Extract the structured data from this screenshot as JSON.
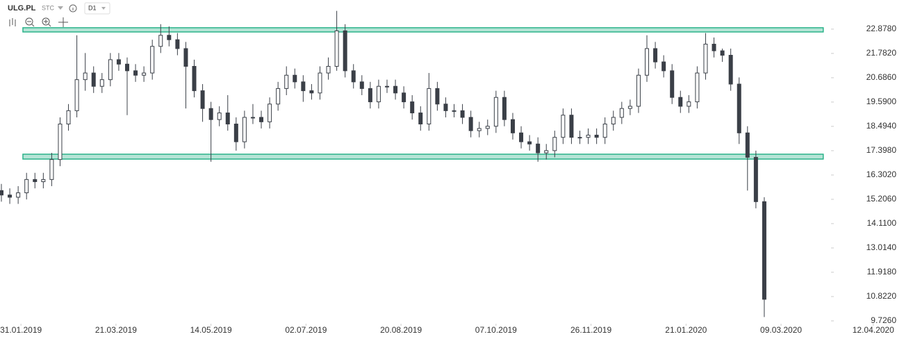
{
  "chart_data": {
    "type": "candlestick",
    "toolbar": {
      "symbol": "ULG.PL",
      "market": "STC",
      "interval": "D1"
    },
    "up_color": "#ffffff",
    "down_color": "#3a3f47",
    "outline_color": "#3a3f47",
    "zone_color": "#2bb38a",
    "xlim": [
      -7.5,
      316
    ],
    "ylim": [
      9.63,
      24.19
    ],
    "xticks": [
      {
        "value": 0,
        "label": "31.01.2019"
      },
      {
        "value": 34,
        "label": "21.03.2019"
      },
      {
        "value": 68,
        "label": "14.05.2019"
      },
      {
        "value": 102,
        "label": "02.07.2019"
      },
      {
        "value": 136,
        "label": "20.08.2019"
      },
      {
        "value": 170,
        "label": "07.10.2019"
      },
      {
        "value": 204,
        "label": "26.11.2019"
      },
      {
        "value": 238,
        "label": "21.01.2020"
      },
      {
        "value": 272,
        "label": "09.03.2020"
      },
      {
        "value": 305,
        "label": "12.04.2020"
      }
    ],
    "yticks": [
      {
        "value": 9.726,
        "label": "9.7260"
      },
      {
        "value": 10.822,
        "label": "10.8220"
      },
      {
        "value": 11.918,
        "label": "11.9180"
      },
      {
        "value": 13.014,
        "label": "13.0140"
      },
      {
        "value": 14.11,
        "label": "14.1100"
      },
      {
        "value": 15.206,
        "label": "15.2060"
      },
      {
        "value": 16.302,
        "label": "16.3020"
      },
      {
        "value": 17.398,
        "label": "17.3980"
      },
      {
        "value": 18.494,
        "label": "18.4940"
      },
      {
        "value": 19.59,
        "label": "19.5900"
      },
      {
        "value": 20.686,
        "label": "20.6860"
      },
      {
        "value": 21.782,
        "label": "21.7820"
      },
      {
        "value": 22.878,
        "label": "22.8780"
      }
    ],
    "zones": [
      {
        "x": [
          0.7,
          287.1
        ],
        "y": [
          22.75,
          22.94
        ]
      },
      {
        "x": [
          0.7,
          287.1
        ],
        "y": [
          17.02,
          17.24
        ]
      }
    ],
    "x": [
      -7,
      -4,
      -1,
      2,
      5,
      8,
      11,
      14,
      17,
      20,
      23,
      26,
      29,
      32,
      35,
      38,
      41,
      44,
      47,
      50,
      53,
      56,
      59,
      62,
      65,
      68,
      71,
      74,
      77,
      80,
      83,
      86,
      89,
      92,
      95,
      98,
      101,
      104,
      107,
      110,
      113,
      116,
      119,
      122,
      125,
      128,
      131,
      134,
      137,
      140,
      143,
      146,
      149,
      152,
      155,
      158,
      161,
      164,
      167,
      170,
      173,
      176,
      179,
      182,
      185,
      188,
      191,
      194,
      197,
      200,
      203,
      206,
      209,
      212,
      215,
      218,
      221,
      224,
      227,
      230,
      233,
      236,
      239,
      242,
      245,
      248,
      251,
      254,
      257,
      260,
      263,
      266
    ],
    "open": [
      15.6,
      15.4,
      15.3,
      15.5,
      16.1,
      16.0,
      16.1,
      17.0,
      18.6,
      19.2,
      20.6,
      20.9,
      20.3,
      20.6,
      21.5,
      21.3,
      21.0,
      20.8,
      20.9,
      22.1,
      22.6,
      22.4,
      22.0,
      21.2,
      20.1,
      19.3,
      18.8,
      19.1,
      18.6,
      17.8,
      18.9,
      18.9,
      18.7,
      19.5,
      20.2,
      20.8,
      20.5,
      20.1,
      20.0,
      20.9,
      21.2,
      22.8,
      21.0,
      20.5,
      20.2,
      19.6,
      20.3,
      20.3,
      20.0,
      19.6,
      19.1,
      18.6,
      20.2,
      19.5,
      19.2,
      19.2,
      18.9,
      18.3,
      18.4,
      18.5,
      19.8,
      18.8,
      18.2,
      17.8,
      17.7,
      17.3,
      17.4,
      18.0,
      19.0,
      18.0,
      18.0,
      18.1,
      18.0,
      18.6,
      18.9,
      19.3,
      19.4,
      20.8,
      22.0,
      21.4,
      21.0,
      19.8,
      19.4,
      19.6,
      20.9,
      22.2,
      21.9,
      21.7,
      20.4,
      18.2,
      17.1,
      15.1
    ],
    "high": [
      15.9,
      15.7,
      15.8,
      16.4,
      16.4,
      16.4,
      17.3,
      18.9,
      19.5,
      22.6,
      21.8,
      21.2,
      20.9,
      21.8,
      21.8,
      21.6,
      21.3,
      21.2,
      22.4,
      23.1,
      23.0,
      22.7,
      22.3,
      21.5,
      20.4,
      19.6,
      19.4,
      19.9,
      18.9,
      19.2,
      19.5,
      19.2,
      19.8,
      20.5,
      21.2,
      21.1,
      20.8,
      20.4,
      21.2,
      21.6,
      23.7,
      23.1,
      21.3,
      20.8,
      20.5,
      20.6,
      20.6,
      20.6,
      20.3,
      19.9,
      19.4,
      20.9,
      20.5,
      19.8,
      19.5,
      19.5,
      19.2,
      18.7,
      18.8,
      20.1,
      20.1,
      19.1,
      18.5,
      18.1,
      18.0,
      17.7,
      18.3,
      19.3,
      19.3,
      18.3,
      18.4,
      18.4,
      18.9,
      19.2,
      19.6,
      19.7,
      21.1,
      22.6,
      22.3,
      21.7,
      21.3,
      20.1,
      19.9,
      21.2,
      22.7,
      22.5,
      22.0,
      22.0,
      20.7,
      18.5,
      17.4,
      15.3
    ],
    "low": [
      15.1,
      15.0,
      15.0,
      15.2,
      15.7,
      15.7,
      15.8,
      16.7,
      18.3,
      18.9,
      20.1,
      20.0,
      20.0,
      20.3,
      21.0,
      19.0,
      20.5,
      20.5,
      20.6,
      21.8,
      22.1,
      21.7,
      19.3,
      19.8,
      18.7,
      16.9,
      18.5,
      18.3,
      17.4,
      17.5,
      18.6,
      18.4,
      18.4,
      19.2,
      19.9,
      20.2,
      19.6,
      19.7,
      19.7,
      20.6,
      21.0,
      20.7,
      20.2,
      19.9,
      19.3,
      19.3,
      20.0,
      19.7,
      19.3,
      18.8,
      18.3,
      18.3,
      19.2,
      18.9,
      18.9,
      18.6,
      18.0,
      18.0,
      18.1,
      18.2,
      18.5,
      17.9,
      17.5,
      17.4,
      16.9,
      17.0,
      17.1,
      17.7,
      17.7,
      17.7,
      17.7,
      17.7,
      17.7,
      18.3,
      18.6,
      19.0,
      19.1,
      20.5,
      21.1,
      20.7,
      19.5,
      19.1,
      19.1,
      19.3,
      20.6,
      21.6,
      21.4,
      20.1,
      17.7,
      15.6,
      14.8,
      9.9
    ],
    "close": [
      15.4,
      15.3,
      15.5,
      16.1,
      16.0,
      16.1,
      17.0,
      18.6,
      19.2,
      20.6,
      20.9,
      20.3,
      20.6,
      21.5,
      21.3,
      21.0,
      20.8,
      20.9,
      22.1,
      22.6,
      22.4,
      22.0,
      21.2,
      20.1,
      19.3,
      18.8,
      19.1,
      18.6,
      17.8,
      18.9,
      18.9,
      18.7,
      19.5,
      20.2,
      20.8,
      20.5,
      20.1,
      20.0,
      20.9,
      21.2,
      22.8,
      21.0,
      20.5,
      20.2,
      19.6,
      20.3,
      20.3,
      20.0,
      19.6,
      19.1,
      18.6,
      20.2,
      19.5,
      19.2,
      19.2,
      18.9,
      18.3,
      18.4,
      18.5,
      19.8,
      18.8,
      18.2,
      17.8,
      17.7,
      17.3,
      17.4,
      18.0,
      19.0,
      18.0,
      18.0,
      18.1,
      18.0,
      18.6,
      18.9,
      19.3,
      19.4,
      20.8,
      22.0,
      21.4,
      21.0,
      19.8,
      19.4,
      19.6,
      20.9,
      22.2,
      21.9,
      21.7,
      20.4,
      18.2,
      17.1,
      15.1,
      10.7
    ]
  }
}
